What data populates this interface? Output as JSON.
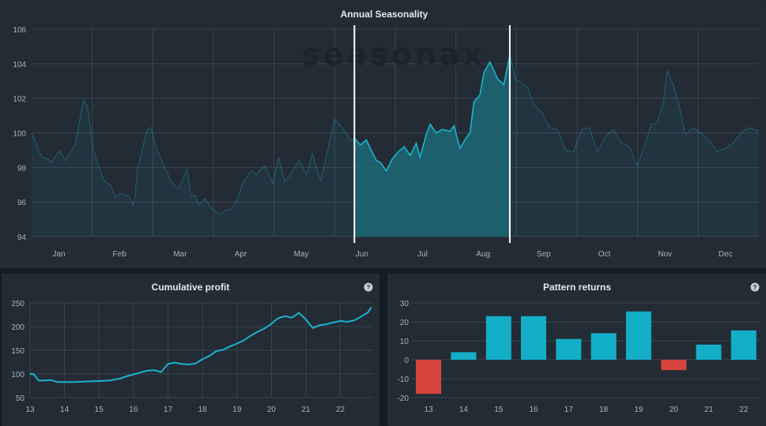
{
  "watermark": "seasonax",
  "colors": {
    "line": "#1ab3cc",
    "bar_pos": "#13aec7",
    "bar_neg": "#d6443e",
    "highlight": "#1c6e7e"
  },
  "chart_data": [
    {
      "type": "line",
      "title": "Annual Seasonality",
      "ylim": [
        94,
        106
      ],
      "y_ticks": [
        94,
        96,
        98,
        100,
        102,
        104,
        106
      ],
      "x_ticks": [
        "Jan",
        "Feb",
        "Mar",
        "Apr",
        "May",
        "Jun",
        "Jul",
        "Aug",
        "Sep",
        "Oct",
        "Nov",
        "Dec"
      ],
      "xlim": [
        0,
        365
      ],
      "highlight_range": [
        162,
        240
      ],
      "x": [
        0,
        5,
        8,
        10,
        14,
        17,
        22,
        26,
        27,
        28,
        31,
        36,
        40,
        42,
        45,
        49,
        51,
        52,
        53,
        55,
        58,
        60,
        62,
        66,
        70,
        72,
        74,
        78,
        80,
        82,
        84,
        87,
        90,
        94,
        97,
        100,
        103,
        106,
        110,
        113,
        117,
        121,
        124,
        127,
        130,
        134,
        138,
        141,
        145,
        148,
        152,
        156,
        160,
        162,
        165,
        168,
        170,
        173,
        175,
        178,
        181,
        184,
        187,
        190,
        193,
        195,
        198,
        200,
        203,
        206,
        210,
        212,
        215,
        218,
        220,
        222,
        225,
        227,
        230,
        234,
        237,
        240,
        243,
        246,
        249,
        252,
        256,
        260,
        264,
        268,
        272,
        276,
        280,
        284,
        288,
        292,
        296,
        300,
        304,
        308,
        311,
        314,
        317,
        319,
        322,
        325,
        328,
        332,
        336,
        340,
        344,
        348,
        352,
        356,
        360,
        365
      ],
      "y": [
        100,
        98.6,
        98.5,
        98.3,
        99,
        98.4,
        99.4,
        101.9,
        101.7,
        101.5,
        99,
        97.3,
        96.9,
        96.3,
        96.5,
        96.3,
        95.8,
        96.5,
        97.8,
        98.8,
        100.2,
        100.3,
        99.3,
        98.2,
        97.2,
        96.9,
        96.8,
        97.9,
        96.3,
        96.4,
        95.8,
        96.2,
        95.7,
        95.3,
        95.5,
        95.6,
        96.1,
        97.1,
        97.8,
        97.6,
        98.1,
        97.1,
        98.6,
        97.2,
        97.6,
        98.4,
        97.6,
        98.8,
        97.2,
        98.7,
        100.8,
        100.3,
        99.6,
        99.7,
        99.3,
        99.6,
        99.1,
        98.4,
        98.3,
        97.8,
        98.5,
        98.9,
        99.2,
        98.7,
        99.4,
        98.6,
        99.9,
        100.5,
        100,
        100.2,
        100.1,
        100.4,
        99.1,
        99.7,
        100,
        101.8,
        102.2,
        103.5,
        104.1,
        103.1,
        102.8,
        104.5,
        103.1,
        102.9,
        102.6,
        101.6,
        101.2,
        100.3,
        100.2,
        99,
        98.9,
        100.2,
        100.3,
        98.9,
        99.8,
        100.2,
        99.4,
        99.2,
        98.1,
        99.4,
        100.5,
        100.6,
        101.7,
        103.6,
        102.8,
        101.6,
        99.9,
        100.3,
        100,
        99.6,
        98.9,
        99.1,
        99.4,
        100,
        100.3,
        100.1
      ]
    },
    {
      "type": "line",
      "title": "Cumulative profit",
      "ylim": [
        50,
        250
      ],
      "y_ticks": [
        50,
        100,
        150,
        200,
        250
      ],
      "x_ticks": [
        "13",
        "14",
        "15",
        "16",
        "17",
        "18",
        "19",
        "20",
        "21",
        "22"
      ],
      "x": [
        13,
        13.1,
        13.25,
        13.4,
        13.6,
        13.8,
        14,
        14.3,
        14.6,
        15,
        15.3,
        15.6,
        15.8,
        16,
        16.2,
        16.4,
        16.6,
        16.8,
        17,
        17.2,
        17.4,
        17.6,
        17.8,
        18,
        18.2,
        18.4,
        18.6,
        18.8,
        19,
        19.2,
        19.4,
        19.6,
        19.8,
        20,
        20.2,
        20.4,
        20.6,
        20.8,
        21,
        21.2,
        21.4,
        21.6,
        21.8,
        22,
        22.2,
        22.4,
        22.6,
        22.8,
        22.9
      ],
      "y": [
        100,
        100,
        86,
        86,
        87,
        83,
        83,
        83,
        84,
        85,
        86,
        90,
        95,
        99,
        103,
        107,
        108,
        104,
        121,
        124,
        121,
        120,
        122,
        131,
        138,
        148,
        151,
        158,
        164,
        171,
        181,
        189,
        196,
        206,
        218,
        222,
        219,
        229,
        215,
        197,
        203,
        205,
        209,
        212,
        210,
        213,
        221,
        230,
        241
      ]
    },
    {
      "type": "bar",
      "title": "Pattern returns",
      "ylim": [
        -20,
        30
      ],
      "y_ticks": [
        -20,
        -10,
        0,
        10,
        20,
        30
      ],
      "categories": [
        "13",
        "14",
        "15",
        "16",
        "17",
        "18",
        "19",
        "20",
        "21",
        "22"
      ],
      "values": [
        -18,
        4,
        23,
        23,
        11,
        14,
        25.5,
        -5.5,
        8,
        15.5
      ]
    }
  ]
}
